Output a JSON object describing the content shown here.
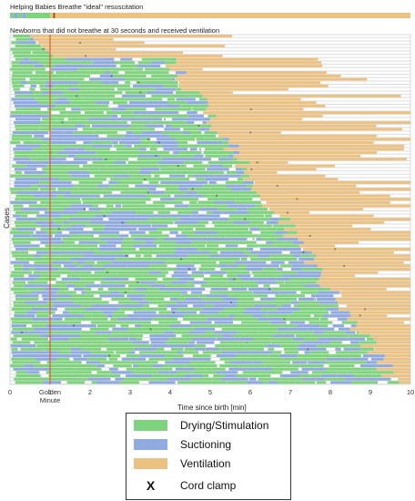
{
  "ideal_title": "Helping Babies Breathe \"ideal\" resuscitation",
  "chart_data": {
    "type": "timeline",
    "title": "Newborns that did not breathe at 30 seconds and received ventilation",
    "xlabel": "Time since birth [min]",
    "ylabel": "Cases",
    "xlim": [
      0,
      10
    ],
    "x_ticks": [
      "0",
      "1",
      "2",
      "3",
      "4",
      "5",
      "6",
      "7",
      "8",
      "9",
      "10"
    ],
    "golden_minute": {
      "x": 1,
      "label_line1": "Golden",
      "label_line2": "Minute"
    },
    "ideal_bar": [
      {
        "start": 0.0,
        "end": 0.1,
        "activity": "drying"
      },
      {
        "start": 0.1,
        "end": 0.2,
        "activity": "suctioning"
      },
      {
        "start": 0.2,
        "end": 0.3,
        "activity": "drying"
      },
      {
        "start": 0.3,
        "end": 0.4,
        "activity": "suctioning"
      },
      {
        "start": 0.4,
        "end": 1.0,
        "activity": "drying"
      },
      {
        "start": 1.0,
        "end": 10.0,
        "activity": "ventilation"
      }
    ],
    "ideal_cord_clamp": 1.1,
    "case_count": 105,
    "colors": {
      "drying": "#7dd47d",
      "suctioning": "#8faadf",
      "ventilation": "#ecc283",
      "cord_clamp": "#222222",
      "golden_line": "#d9602b"
    },
    "legend": [
      {
        "key": "drying",
        "label": "Drying/Stimulation"
      },
      {
        "key": "suctioning",
        "label": "Suctioning"
      },
      {
        "key": "ventilation",
        "label": "Ventilation"
      },
      {
        "key": "cord_clamp",
        "label": "Cord clamp",
        "symbol": "X"
      }
    ]
  }
}
